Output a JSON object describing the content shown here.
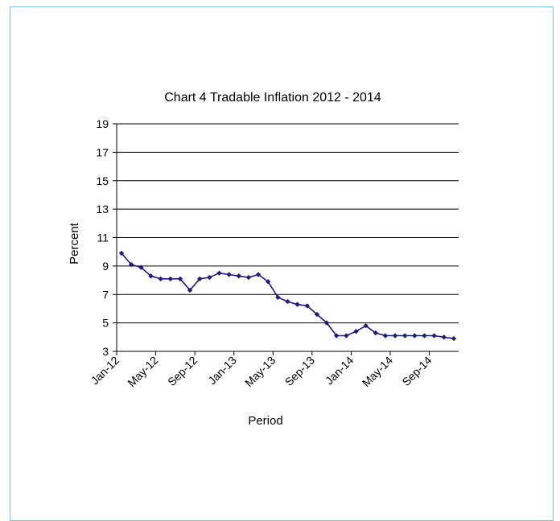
{
  "chart_data": {
    "type": "line",
    "title": "Chart 4 Tradable Inflation 2012 - 2014",
    "xlabel": "Period",
    "ylabel": "Percent",
    "ylim": [
      3,
      19
    ],
    "yticks": [
      3,
      5,
      7,
      9,
      11,
      13,
      15,
      17,
      19
    ],
    "grid": true,
    "x_tick_labels": [
      "Jan-12",
      "May-12",
      "Sep-12",
      "Jan-13",
      "May-13",
      "Sep-13",
      "Jan-14",
      "May-14",
      "Sep-14"
    ],
    "x_tick_indices": [
      0,
      4,
      8,
      12,
      16,
      20,
      24,
      28,
      32
    ],
    "categories": [
      "Jan-12",
      "Feb-12",
      "Mar-12",
      "Apr-12",
      "May-12",
      "Jun-12",
      "Jul-12",
      "Aug-12",
      "Sep-12",
      "Oct-12",
      "Nov-12",
      "Dec-12",
      "Jan-13",
      "Feb-13",
      "Mar-13",
      "Apr-13",
      "May-13",
      "Jun-13",
      "Jul-13",
      "Aug-13",
      "Sep-13",
      "Oct-13",
      "Nov-13",
      "Dec-13",
      "Jan-14",
      "Feb-14",
      "Mar-14",
      "Apr-14",
      "May-14",
      "Jun-14",
      "Jul-14",
      "Aug-14",
      "Sep-14",
      "Oct-14",
      "Nov-14"
    ],
    "series": [
      {
        "values": [
          9.9,
          9.1,
          8.9,
          8.3,
          8.1,
          8.1,
          8.1,
          7.3,
          8.1,
          8.2,
          8.5,
          8.4,
          8.3,
          8.2,
          8.4,
          7.9,
          6.8,
          6.5,
          6.3,
          6.2,
          5.6,
          5.0,
          4.1,
          4.1,
          4.4,
          4.8,
          4.3,
          4.1,
          4.1,
          4.1,
          4.1,
          4.1,
          4.1,
          4.0,
          3.9
        ],
        "color": "#1f1a80"
      }
    ]
  }
}
